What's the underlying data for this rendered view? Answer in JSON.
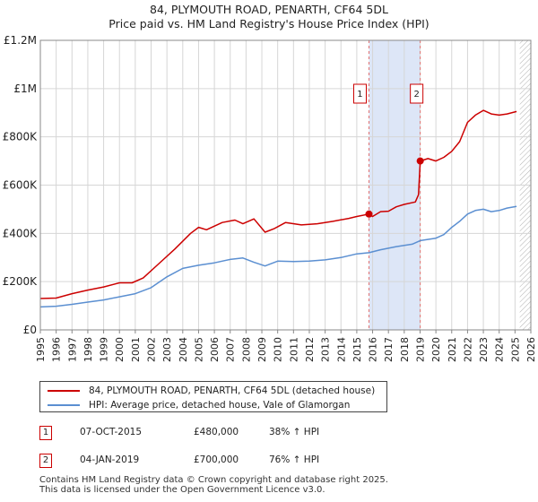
{
  "chart_data": {
    "type": "line",
    "title": "84, PLYMOUTH ROAD, PENARTH, CF64 5DL",
    "subtitle": "Price paid vs. HM Land Registry's House Price Index (HPI)",
    "xlim": [
      1995,
      2026
    ],
    "ylim": [
      0,
      1200000
    ],
    "y_ticks": [
      {
        "value": 0,
        "label": "£0"
      },
      {
        "value": 200000,
        "label": "£200K"
      },
      {
        "value": 400000,
        "label": "£400K"
      },
      {
        "value": 600000,
        "label": "£600K"
      },
      {
        "value": 800000,
        "label": "£800K"
      },
      {
        "value": 1000000,
        "label": "£1M"
      },
      {
        "value": 1200000,
        "label": "£1.2M"
      }
    ],
    "x_ticks": [
      "1995",
      "1996",
      "1997",
      "1998",
      "1999",
      "2000",
      "2001",
      "2002",
      "2003",
      "2004",
      "2005",
      "2006",
      "2007",
      "2008",
      "2009",
      "2010",
      "2011",
      "2012",
      "2013",
      "2014",
      "2015",
      "2016",
      "2017",
      "2018",
      "2019",
      "2020",
      "2021",
      "2022",
      "2023",
      "2024",
      "2025",
      "2026"
    ],
    "grid": true,
    "shaded_region": {
      "from": 2015.77,
      "to": 2019.01
    },
    "future_hatch_from": 2025.3,
    "series": [
      {
        "name": "84, PLYMOUTH ROAD, PENARTH, CF64 5DL (detached house)",
        "color": "#cc0000",
        "points": [
          [
            1995.0,
            130000
          ],
          [
            1996.0,
            132000
          ],
          [
            1997.0,
            150000
          ],
          [
            1998.0,
            165000
          ],
          [
            1999.0,
            178000
          ],
          [
            2000.0,
            195000
          ],
          [
            2000.8,
            195000
          ],
          [
            2001.5,
            215000
          ],
          [
            2002.5,
            275000
          ],
          [
            2003.5,
            335000
          ],
          [
            2004.5,
            400000
          ],
          [
            2005.0,
            425000
          ],
          [
            2005.5,
            415000
          ],
          [
            2006.5,
            445000
          ],
          [
            2007.3,
            455000
          ],
          [
            2007.8,
            440000
          ],
          [
            2008.5,
            460000
          ],
          [
            2009.2,
            405000
          ],
          [
            2009.8,
            420000
          ],
          [
            2010.5,
            445000
          ],
          [
            2011.5,
            435000
          ],
          [
            2012.5,
            440000
          ],
          [
            2013.0,
            445000
          ],
          [
            2013.5,
            450000
          ],
          [
            2014.5,
            462000
          ],
          [
            2015.0,
            470000
          ],
          [
            2015.77,
            480000
          ],
          [
            2016.0,
            470000
          ],
          [
            2016.5,
            490000
          ],
          [
            2017.0,
            492000
          ],
          [
            2017.5,
            510000
          ],
          [
            2018.0,
            520000
          ],
          [
            2018.7,
            530000
          ],
          [
            2018.9,
            560000
          ],
          [
            2019.01,
            700000
          ],
          [
            2019.5,
            710000
          ],
          [
            2020.0,
            700000
          ],
          [
            2020.5,
            715000
          ],
          [
            2021.0,
            740000
          ],
          [
            2021.5,
            780000
          ],
          [
            2022.0,
            860000
          ],
          [
            2022.5,
            890000
          ],
          [
            2023.0,
            910000
          ],
          [
            2023.5,
            895000
          ],
          [
            2024.0,
            890000
          ],
          [
            2024.5,
            895000
          ],
          [
            2025.1,
            905000
          ]
        ]
      },
      {
        "name": "HPI: Average price, detached house, Vale of Glamorgan",
        "color": "#5b8fd1",
        "points": [
          [
            1995.0,
            95000
          ],
          [
            1996.0,
            98000
          ],
          [
            1997.0,
            106000
          ],
          [
            1998.0,
            115000
          ],
          [
            1999.0,
            124000
          ],
          [
            2000.0,
            137000
          ],
          [
            2001.0,
            150000
          ],
          [
            2002.0,
            175000
          ],
          [
            2003.0,
            220000
          ],
          [
            2004.0,
            255000
          ],
          [
            2005.0,
            268000
          ],
          [
            2006.0,
            278000
          ],
          [
            2007.0,
            292000
          ],
          [
            2007.8,
            298000
          ],
          [
            2008.5,
            280000
          ],
          [
            2009.2,
            265000
          ],
          [
            2010.0,
            285000
          ],
          [
            2011.0,
            283000
          ],
          [
            2012.0,
            285000
          ],
          [
            2013.0,
            290000
          ],
          [
            2014.0,
            300000
          ],
          [
            2015.0,
            315000
          ],
          [
            2015.77,
            320000
          ],
          [
            2016.5,
            332000
          ],
          [
            2017.5,
            345000
          ],
          [
            2018.5,
            355000
          ],
          [
            2019.01,
            370000
          ],
          [
            2020.0,
            380000
          ],
          [
            2020.5,
            395000
          ],
          [
            2021.0,
            425000
          ],
          [
            2021.5,
            450000
          ],
          [
            2022.0,
            480000
          ],
          [
            2022.5,
            495000
          ],
          [
            2023.0,
            500000
          ],
          [
            2023.5,
            490000
          ],
          [
            2024.0,
            495000
          ],
          [
            2024.5,
            505000
          ],
          [
            2025.1,
            512000
          ]
        ]
      }
    ],
    "sales": [
      {
        "id": "1",
        "x": 2015.77,
        "y": 480000
      },
      {
        "id": "2",
        "x": 2019.01,
        "y": 700000
      }
    ]
  },
  "legend": {
    "property_label": "84, PLYMOUTH ROAD, PENARTH, CF64 5DL (detached house)",
    "hpi_label": "HPI: Average price, detached house, Vale of Glamorgan"
  },
  "sales_table": [
    {
      "num": "1",
      "date": "07-OCT-2015",
      "price": "£480,000",
      "hpi": "38% ↑ HPI"
    },
    {
      "num": "2",
      "date": "04-JAN-2019",
      "price": "£700,000",
      "hpi": "76% ↑ HPI"
    }
  ],
  "footer": {
    "line1": "Contains HM Land Registry data © Crown copyright and database right 2025.",
    "line2": "This data is licensed under the Open Government Licence v3.0."
  },
  "colors": {
    "property": "#cc0000",
    "hpi": "#5b8fd1",
    "shade": "#dde6f7",
    "grid": "#d6d6d6"
  }
}
